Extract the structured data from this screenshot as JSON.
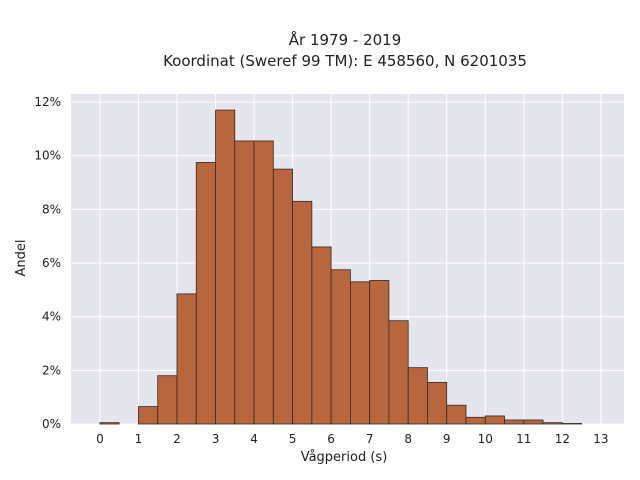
{
  "chart_data": {
    "type": "bar",
    "title": "År 1979 - 2019",
    "subtitle": "Koordinat (Sweref 99 TM): E 458560, N 6201035",
    "xlabel": "Vågperiod (s)",
    "ylabel": "Andel",
    "bin_width": 0.5,
    "bin_starts": [
      0,
      0.5,
      1,
      1.5,
      2,
      2.5,
      3,
      3.5,
      4,
      4.5,
      5,
      5.5,
      6,
      6.5,
      7,
      7.5,
      8,
      8.5,
      9,
      9.5,
      10,
      10.5,
      11,
      11.5,
      12,
      12.5
    ],
    "values": [
      0.05,
      0,
      0.65,
      1.8,
      4.85,
      9.75,
      11.7,
      10.55,
      10.55,
      9.5,
      8.3,
      6.6,
      5.75,
      5.3,
      5.35,
      3.85,
      2.1,
      1.55,
      0.7,
      0.25,
      0.3,
      0.15,
      0.15,
      0.05,
      0.02,
      0
    ],
    "xlim": [
      -0.75,
      13.6
    ],
    "ylim": [
      0,
      12.3
    ],
    "x_ticks": [
      0,
      1,
      2,
      3,
      4,
      5,
      6,
      7,
      8,
      9,
      10,
      11,
      12,
      13
    ],
    "y_ticks": [
      0,
      2,
      4,
      6,
      8,
      10,
      12
    ],
    "y_tick_suffix": "%",
    "grid": true,
    "colors": {
      "bar_fill": "#b8663e",
      "bar_stroke": "#3a2a20",
      "plot_background": "#e5e5ee",
      "grid": "#ffffff"
    }
  }
}
